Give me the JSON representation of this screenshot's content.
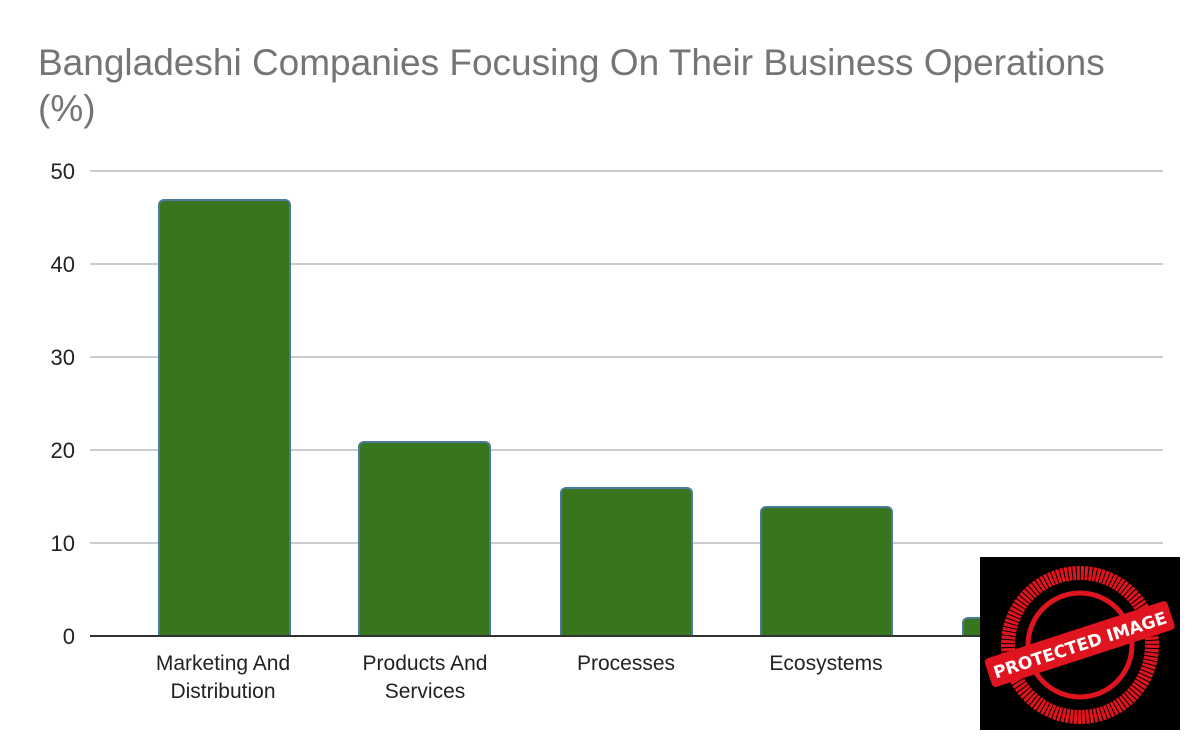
{
  "chart_data": {
    "type": "bar",
    "title": "Bangladeshi Companies Focusing On Their Business Operations (%)",
    "categories": [
      "Marketing And Distribution",
      "Products And Services",
      "Processes",
      "Ecosystems",
      "Su"
    ],
    "values": [
      47,
      21,
      16,
      14,
      2
    ],
    "xlabel": "",
    "ylabel": "",
    "ylim": [
      0,
      50
    ],
    "yticks": [
      "0",
      "10",
      "20",
      "30",
      "40",
      "50"
    ],
    "grid": true,
    "legend": "none",
    "bar_color": "#38761d",
    "bar_border_color": "#4a7aa0"
  },
  "title_line1": "Bangladeshi Companies Focusing On Their Business Operations",
  "title_line2": "(%)",
  "xlabels": [
    {
      "line1": "Marketing And",
      "line2": "Distribution"
    },
    {
      "line1": "Products And",
      "line2": "Services"
    },
    {
      "line1": "Processes",
      "line2": ""
    },
    {
      "line1": "Ecosystems",
      "line2": ""
    },
    {
      "line1": "Su",
      "line2": ""
    }
  ],
  "watermark": {
    "text": "PROTECTED IMAGE"
  }
}
